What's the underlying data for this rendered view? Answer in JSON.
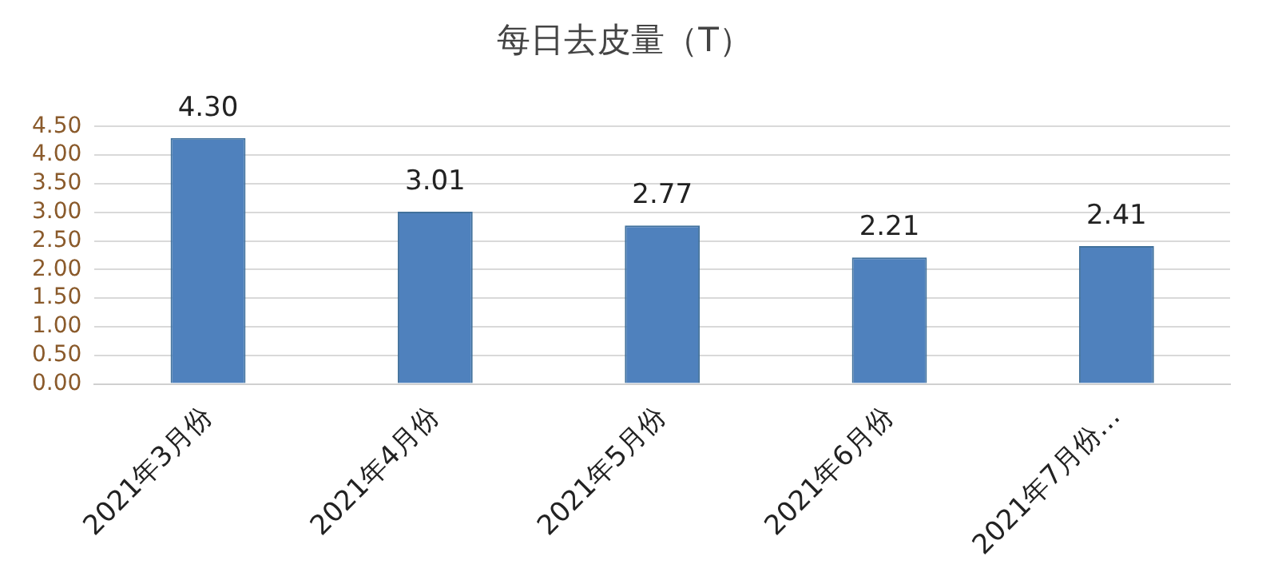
{
  "chart_data": {
    "type": "bar",
    "title": "每日去皮量（T）",
    "categories": [
      "2021年3月份",
      "2021年4月份",
      "2021年5月份",
      "2021年6月份",
      "2021年7月份…"
    ],
    "values": [
      4.3,
      3.01,
      2.77,
      2.21,
      2.41
    ],
    "color": "#4f81bd",
    "ylim": [
      0,
      4.5
    ],
    "yticks": [
      {
        "value": 0,
        "label": "0.00"
      },
      {
        "value": 0.5,
        "label": "0.50"
      },
      {
        "value": 1,
        "label": "1.00"
      },
      {
        "value": 1.5,
        "label": "1.50"
      },
      {
        "value": 2,
        "label": "2.00"
      },
      {
        "value": 2.5,
        "label": "2.50"
      },
      {
        "value": 3,
        "label": "3.00"
      },
      {
        "value": 3.5,
        "label": "3.50"
      },
      {
        "value": 4,
        "label": "4.00"
      },
      {
        "value": 4.5,
        "label": "4.50"
      }
    ],
    "value_labels": [
      "4.30",
      "3.01",
      "2.77",
      "2.21",
      "2.41"
    ],
    "grid": "y"
  }
}
